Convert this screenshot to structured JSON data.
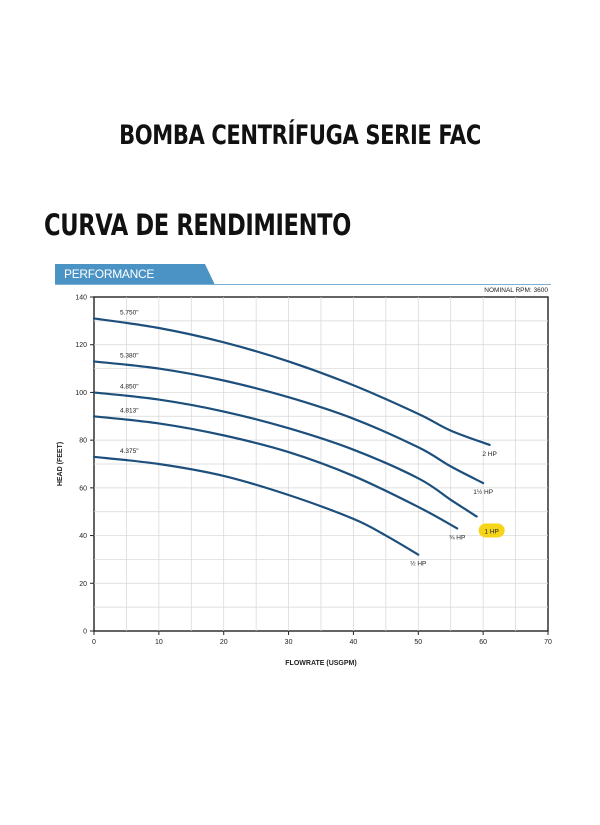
{
  "header": {
    "title": "BOMBA CENTRÍFUGA SERIE FAC",
    "section": "CURVA DE RENDIMIENTO",
    "banner": "PERFORMANCE"
  },
  "chart_data": {
    "type": "line",
    "note": "NOMINAL RPM: 3600",
    "xlabel": "FLOWRATE (USGPM)",
    "ylabel": "HEAD (FEET)",
    "xlim": [
      0,
      70
    ],
    "ylim": [
      0,
      140
    ],
    "xticks": [
      0,
      10,
      20,
      30,
      40,
      50,
      60,
      70
    ],
    "yticks": [
      0,
      20,
      40,
      60,
      80,
      100,
      120,
      140
    ],
    "grid": true,
    "line_color": "#1d4f7c",
    "highlight_color": "#f6d417",
    "series": [
      {
        "name": "5.750\"",
        "hp": "2 HP",
        "x": [
          0,
          10,
          20,
          30,
          40,
          50,
          55,
          61
        ],
        "y": [
          131,
          127,
          121,
          113,
          103,
          91,
          84,
          78
        ]
      },
      {
        "name": "5.380\"",
        "hp": "1½ HP",
        "x": [
          0,
          10,
          20,
          30,
          40,
          50,
          55,
          60
        ],
        "y": [
          113,
          110,
          105,
          98,
          89,
          77,
          69,
          62
        ]
      },
      {
        "name": "4.850\"",
        "hp": "1 HP",
        "x": [
          0,
          10,
          20,
          30,
          40,
          50,
          55,
          59
        ],
        "y": [
          100,
          97,
          92,
          85,
          76,
          64,
          55,
          48
        ]
      },
      {
        "name": "4.813\"",
        "hp": "¾ HP",
        "x": [
          0,
          10,
          20,
          30,
          40,
          50,
          56
        ],
        "y": [
          90,
          87,
          82,
          75,
          65,
          52,
          43
        ]
      },
      {
        "name": "4.375\"",
        "hp": "½ HP",
        "x": [
          0,
          10,
          20,
          30,
          40,
          45,
          50
        ],
        "y": [
          73,
          70,
          65,
          57,
          47,
          40,
          32
        ]
      }
    ]
  }
}
